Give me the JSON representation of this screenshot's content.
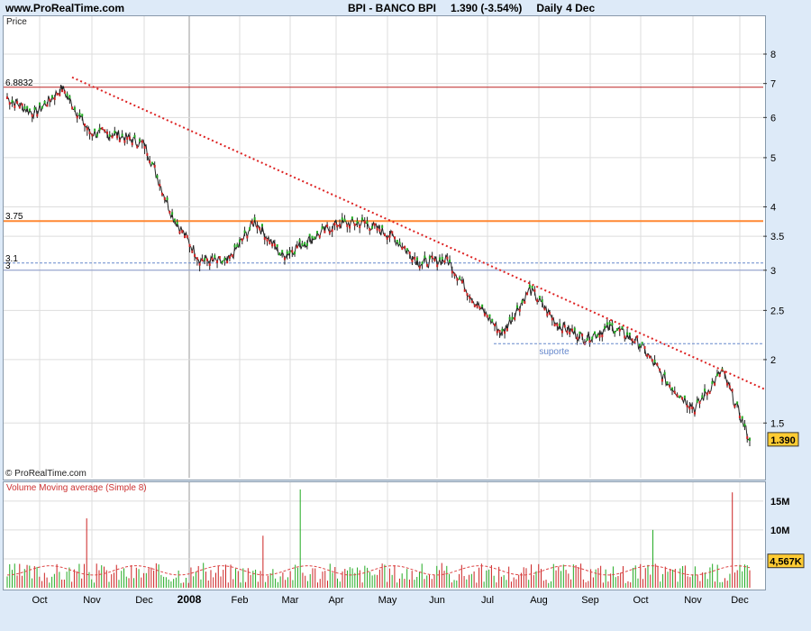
{
  "header": {
    "site": "www.ProRealTime.com",
    "symbol": "BPI - BANCO BPI",
    "quote": "1.390 (-3.54%)",
    "period": "Daily",
    "date": "4 Dec"
  },
  "price_panel": {
    "label": "Price",
    "copyright": "© ProRealTime.com"
  },
  "volume_panel": {
    "label": "Volume Moving average (Simple 8)"
  },
  "colors": {
    "up": "#22aa22",
    "down": "#cc2222",
    "trend": "#dd2222",
    "resistance_dark": "#bb2222",
    "resistance_orange": "#ff8833",
    "support_dashed": "#6688cc",
    "grid": "#dddddd",
    "badge": "#ffcc33"
  },
  "chart_data": [
    {
      "type": "candlestick",
      "title": "BPI - BANCO BPI",
      "scale": "log",
      "ylim": [
        1.17,
        9.5
      ],
      "y_ticks": [
        1.5,
        2,
        2.5,
        3,
        3.5,
        4,
        5,
        6,
        7,
        8
      ],
      "x_ticks": [
        "Oct",
        "Nov",
        "Dec",
        "2008",
        "Feb",
        "Mar",
        "Apr",
        "May",
        "Jun",
        "Jul",
        "Aug",
        "Sep",
        "Oct",
        "Nov",
        "Dec"
      ],
      "last_value": "1.390",
      "close_path": [
        {
          "x": "Oct",
          "y": 6.55
        },
        {
          "x": "Oct (mid)",
          "y": 6.1
        },
        {
          "x": "Nov",
          "y": 6.85
        },
        {
          "x": "Nov (mid)",
          "y": 5.6
        },
        {
          "x": "Dec",
          "y": 5.55
        },
        {
          "x": "2008",
          "y": 5.3
        },
        {
          "x": "2008 (mid)",
          "y": 3.85
        },
        {
          "x": "Feb",
          "y": 3.15
        },
        {
          "x": "Feb (mid)",
          "y": 3.1
        },
        {
          "x": "Mar",
          "y": 3.75
        },
        {
          "x": "Mar (mid)",
          "y": 3.2
        },
        {
          "x": "Apr",
          "y": 3.45
        },
        {
          "x": "Apr (mid)",
          "y": 3.7
        },
        {
          "x": "May",
          "y": 3.72
        },
        {
          "x": "May (mid)",
          "y": 3.5
        },
        {
          "x": "Jun",
          "y": 3.1
        },
        {
          "x": "Jun (mid)",
          "y": 3.15
        },
        {
          "x": "Jul",
          "y": 2.6
        },
        {
          "x": "Jul (mid)",
          "y": 2.25
        },
        {
          "x": "Aug",
          "y": 2.75
        },
        {
          "x": "Aug (mid)",
          "y": 2.35
        },
        {
          "x": "Sep",
          "y": 2.2
        },
        {
          "x": "Sep (mid)",
          "y": 2.32
        },
        {
          "x": "Oct",
          "y": 2.15
        },
        {
          "x": "Oct (mid)",
          "y": 1.8
        },
        {
          "x": "Nov",
          "y": 1.6
        },
        {
          "x": "Nov (mid)",
          "y": 1.9
        },
        {
          "x": "Dec",
          "y": 1.39
        }
      ],
      "horizontal_lines": [
        {
          "label": "6.8832",
          "value": 6.8832,
          "style": "solid",
          "color": "#bb2222"
        },
        {
          "label": "3.75",
          "value": 3.75,
          "style": "solid",
          "color": "#ff8833"
        },
        {
          "label": "3.1",
          "value": 3.1,
          "style": "dashed",
          "color": "#6688cc"
        },
        {
          "label": "3",
          "value": 3.0,
          "style": "solid",
          "color": "#8899cc"
        }
      ],
      "trendline": {
        "style": "dotted",
        "color": "#dd2222",
        "from": {
          "x": "Oct (late)",
          "y": 7.2
        },
        "to": {
          "x": "Dec (end)",
          "y": 1.75
        }
      },
      "support": {
        "label": "suporte",
        "value": 2.15
      }
    },
    {
      "type": "bar",
      "title": "Volume Moving average (Simple 8)",
      "y_ticks": [
        "5M",
        "10M",
        "15M"
      ],
      "ylim": [
        0,
        17000000
      ],
      "last_value": "4,567K",
      "spikes": [
        {
          "x": "Nov",
          "value": 12000000
        },
        {
          "x": "Feb",
          "value": 9000000
        },
        {
          "x": "Mar",
          "value": 17000000
        },
        {
          "x": "Oct",
          "value": 10000000
        },
        {
          "x": "Nov (late)",
          "value": 16500000
        }
      ]
    }
  ]
}
